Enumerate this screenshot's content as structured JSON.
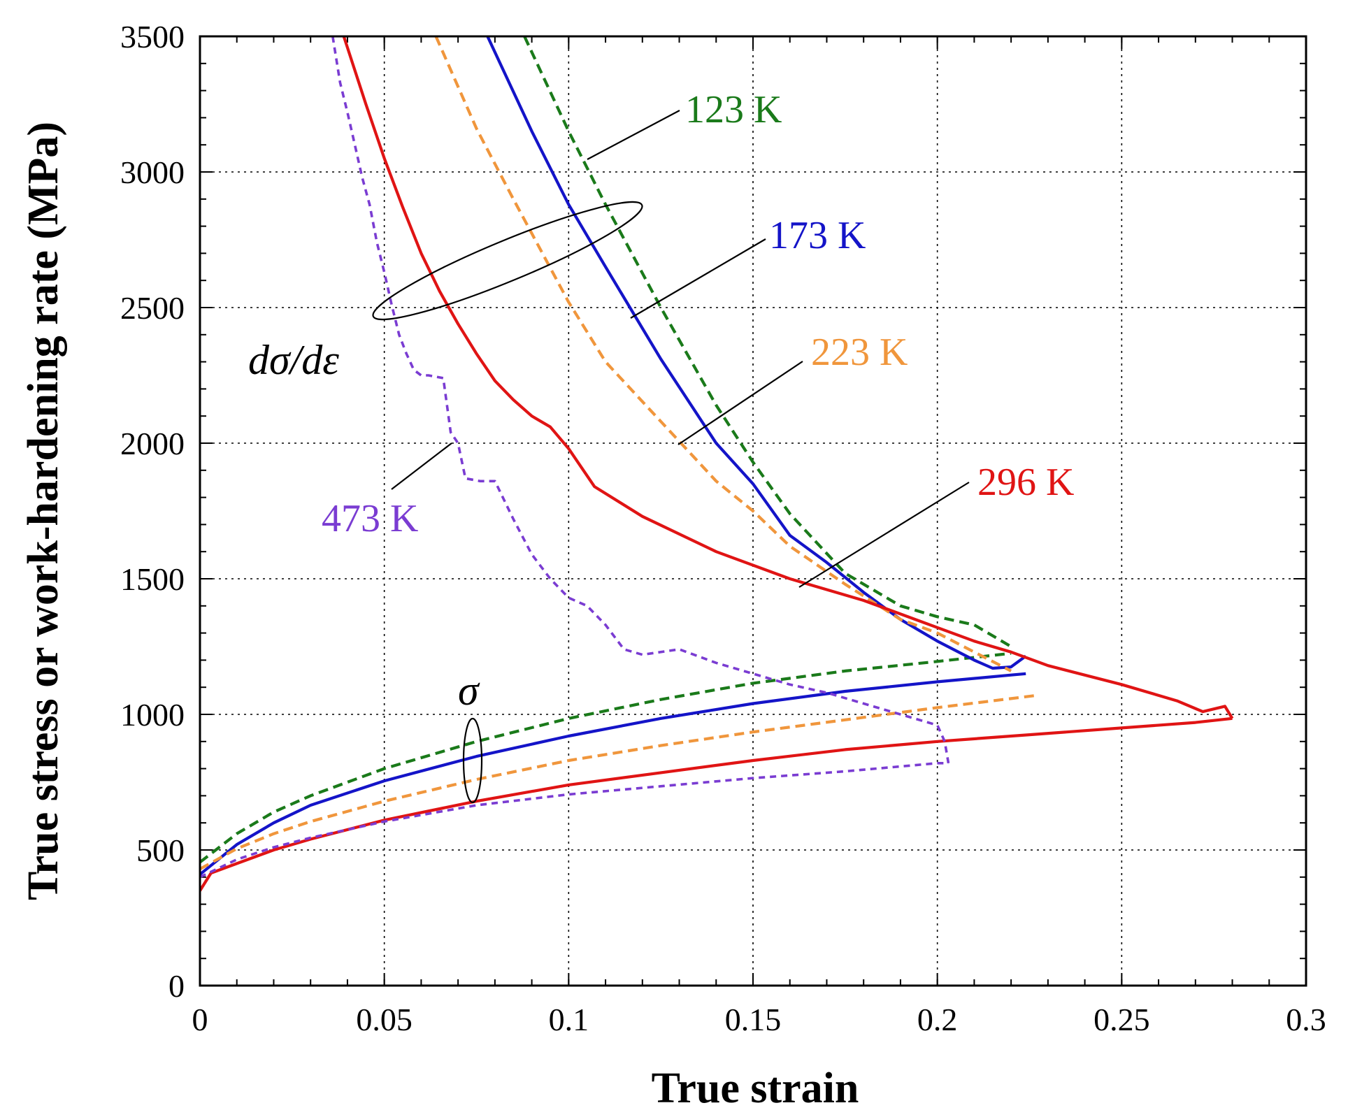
{
  "chart_data": {
    "type": "line",
    "title": "",
    "xlabel": "True strain",
    "ylabel": "True stress or work-hardening rate (MPa)",
    "xlim": [
      0,
      0.3
    ],
    "ylim": [
      0,
      3500
    ],
    "grid": true,
    "x_ticks": [
      0,
      0.05,
      0.1,
      0.15,
      0.2,
      0.25,
      0.3
    ],
    "x_tick_labels": [
      "0",
      "0.05",
      "0.1",
      "0.15",
      "0.2",
      "0.25",
      "0.3"
    ],
    "y_ticks": [
      0,
      500,
      1000,
      1500,
      2000,
      2500,
      3000,
      3500
    ],
    "y_tick_labels": [
      "0",
      "500",
      "1000",
      "1500",
      "2000",
      "2500",
      "3000",
      "3500"
    ],
    "series": [
      {
        "name": "123 K",
        "temperature": "123 K",
        "color": "#1a7a1a",
        "dash": "dashed",
        "stress": {
          "x": [
            0,
            0.01,
            0.02,
            0.03,
            0.05,
            0.075,
            0.1,
            0.125,
            0.15,
            0.175,
            0.2,
            0.22
          ],
          "y": [
            455,
            560,
            640,
            700,
            800,
            900,
            985,
            1055,
            1115,
            1160,
            1195,
            1225
          ]
        },
        "hardening": {
          "x": [
            0.088,
            0.1,
            0.11,
            0.125,
            0.14,
            0.15,
            0.16,
            0.175,
            0.19,
            0.2,
            0.21,
            0.22
          ],
          "y": [
            3500,
            3150,
            2880,
            2500,
            2140,
            1930,
            1740,
            1520,
            1400,
            1360,
            1330,
            1250
          ]
        }
      },
      {
        "name": "173 K",
        "temperature": "173 K",
        "color": "#1414c8",
        "dash": "solid",
        "stress": {
          "x": [
            0,
            0.01,
            0.02,
            0.03,
            0.05,
            0.075,
            0.1,
            0.125,
            0.15,
            0.175,
            0.2,
            0.22,
            0.224
          ],
          "y": [
            410,
            520,
            600,
            665,
            755,
            845,
            920,
            985,
            1040,
            1085,
            1120,
            1145,
            1150
          ]
        },
        "hardening": {
          "x": [
            0.078,
            0.09,
            0.1,
            0.11,
            0.125,
            0.14,
            0.15,
            0.16,
            0.17,
            0.18,
            0.19,
            0.2,
            0.21,
            0.215,
            0.22,
            0.224
          ],
          "y": [
            3500,
            3150,
            2880,
            2650,
            2310,
            2000,
            1850,
            1660,
            1560,
            1450,
            1350,
            1270,
            1200,
            1170,
            1175,
            1215
          ]
        }
      },
      {
        "name": "223 K",
        "temperature": "223 K",
        "color": "#f0963c",
        "dash": "dashed",
        "stress": {
          "x": [
            0,
            0.01,
            0.02,
            0.03,
            0.05,
            0.075,
            0.1,
            0.125,
            0.15,
            0.175,
            0.2,
            0.215,
            0.227
          ],
          "y": [
            430,
            505,
            560,
            605,
            680,
            760,
            830,
            885,
            935,
            980,
            1025,
            1050,
            1070
          ]
        },
        "hardening": {
          "x": [
            0.064,
            0.075,
            0.085,
            0.1,
            0.11,
            0.125,
            0.14,
            0.15,
            0.16,
            0.175,
            0.19,
            0.2,
            0.21,
            0.22
          ],
          "y": [
            3500,
            3160,
            2900,
            2520,
            2300,
            2080,
            1860,
            1750,
            1620,
            1480,
            1350,
            1300,
            1230,
            1160
          ]
        }
      },
      {
        "name": "296 K",
        "temperature": "296 K",
        "color": "#e01414",
        "dash": "solid",
        "stress": {
          "x": [
            0,
            0.003,
            0.01,
            0.02,
            0.03,
            0.05,
            0.075,
            0.1,
            0.125,
            0.15,
            0.175,
            0.2,
            0.225,
            0.25,
            0.27,
            0.28
          ],
          "y": [
            350,
            415,
            450,
            500,
            540,
            610,
            680,
            740,
            785,
            830,
            870,
            900,
            925,
            950,
            970,
            985
          ]
        },
        "hardening": {
          "x": [
            0.039,
            0.045,
            0.05,
            0.055,
            0.06,
            0.065,
            0.07,
            0.075,
            0.08,
            0.085,
            0.09,
            0.095,
            0.1,
            0.107,
            0.12,
            0.14,
            0.16,
            0.18,
            0.2,
            0.21,
            0.22,
            0.23,
            0.25,
            0.265,
            0.272,
            0.278,
            0.28
          ],
          "y": [
            3500,
            3250,
            3050,
            2870,
            2700,
            2560,
            2440,
            2330,
            2230,
            2160,
            2100,
            2060,
            1980,
            1840,
            1730,
            1600,
            1500,
            1420,
            1320,
            1270,
            1230,
            1180,
            1110,
            1050,
            1010,
            1030,
            985
          ]
        }
      },
      {
        "name": "473 K",
        "temperature": "473 K",
        "color": "#7a3cd2",
        "dash": "dashed",
        "stress": {
          "x": [
            0,
            0.01,
            0.02,
            0.03,
            0.05,
            0.075,
            0.1,
            0.125,
            0.15,
            0.175,
            0.2,
            0.203
          ],
          "y": [
            400,
            465,
            510,
            545,
            605,
            665,
            705,
            735,
            765,
            790,
            820,
            820
          ]
        },
        "hardening": {
          "x": [
            0.036,
            0.038,
            0.04,
            0.042,
            0.044,
            0.046,
            0.048,
            0.05,
            0.052,
            0.054,
            0.056,
            0.058,
            0.06,
            0.062,
            0.066,
            0.068,
            0.07,
            0.072,
            0.076,
            0.08,
            0.085,
            0.09,
            0.095,
            0.1,
            0.105,
            0.11,
            0.115,
            0.12,
            0.13,
            0.14,
            0.15,
            0.16,
            0.17,
            0.18,
            0.19,
            0.2,
            0.202,
            0.203
          ],
          "y": [
            3500,
            3330,
            3220,
            3100,
            2980,
            2880,
            2740,
            2630,
            2510,
            2400,
            2330,
            2270,
            2250,
            2250,
            2240,
            2040,
            2000,
            1870,
            1860,
            1860,
            1720,
            1590,
            1500,
            1430,
            1400,
            1330,
            1240,
            1220,
            1240,
            1190,
            1150,
            1110,
            1080,
            1040,
            1000,
            960,
            900,
            820
          ]
        }
      }
    ],
    "annotations": {
      "dsde_label": "dσ/dε",
      "sigma_label": "σ"
    }
  }
}
